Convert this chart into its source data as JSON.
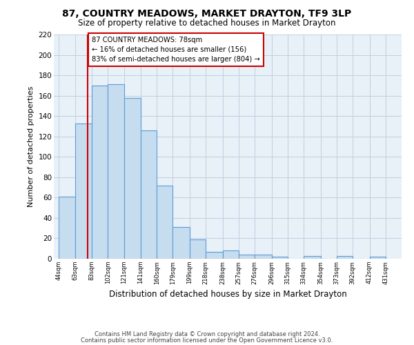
{
  "title": "87, COUNTRY MEADOWS, MARKET DRAYTON, TF9 3LP",
  "subtitle": "Size of property relative to detached houses in Market Drayton",
  "xlabel": "Distribution of detached houses by size in Market Drayton",
  "ylabel": "Number of detached properties",
  "footnote1": "Contains HM Land Registry data © Crown copyright and database right 2024.",
  "footnote2": "Contains public sector information licensed under the Open Government Licence v3.0.",
  "bar_left_edges": [
    44,
    63,
    83,
    102,
    121,
    141,
    160,
    179,
    199,
    218,
    238,
    257,
    276,
    296,
    315,
    334,
    354,
    373,
    392,
    412
  ],
  "bar_heights": [
    61,
    133,
    170,
    171,
    158,
    126,
    72,
    31,
    19,
    7,
    8,
    4,
    4,
    2,
    0,
    3,
    0,
    3,
    0,
    2
  ],
  "bar_widths": [
    19,
    20,
    19,
    19,
    20,
    19,
    19,
    20,
    19,
    20,
    19,
    19,
    20,
    19,
    19,
    20,
    19,
    19,
    19,
    19
  ],
  "xtick_labels": [
    "44sqm",
    "63sqm",
    "83sqm",
    "102sqm",
    "121sqm",
    "141sqm",
    "160sqm",
    "179sqm",
    "199sqm",
    "218sqm",
    "238sqm",
    "257sqm",
    "276sqm",
    "296sqm",
    "315sqm",
    "334sqm",
    "354sqm",
    "373sqm",
    "392sqm",
    "412sqm",
    "431sqm"
  ],
  "xtick_positions": [
    44,
    63,
    83,
    102,
    121,
    141,
    160,
    179,
    199,
    218,
    238,
    257,
    276,
    296,
    315,
    334,
    354,
    373,
    392,
    412,
    431
  ],
  "ylim": [
    0,
    220
  ],
  "yticks": [
    0,
    20,
    40,
    60,
    80,
    100,
    120,
    140,
    160,
    180,
    200,
    220
  ],
  "bar_color": "#c6dcef",
  "bar_edge_color": "#5b9bd5",
  "vline_x": 78,
  "vline_color": "#cc0000",
  "annotation_title": "87 COUNTRY MEADOWS: 78sqm",
  "annotation_line1": "← 16% of detached houses are smaller (156)",
  "annotation_line2": "83% of semi-detached houses are larger (804) →",
  "annotation_box_color": "#ffffff",
  "annotation_border_color": "#cc0000",
  "bg_color": "#ffffff",
  "plot_bg_color": "#e8f0f8",
  "grid_color": "#c0d0e0"
}
